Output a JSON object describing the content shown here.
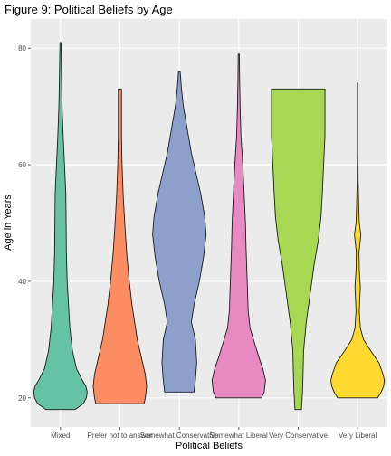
{
  "chart_data": {
    "type": "violin",
    "title": "Figure 9: Political Beliefs by Age",
    "xlabel": "Political Beliefs",
    "ylabel": "Age in Years",
    "ylim": [
      15,
      85
    ],
    "yticks": [
      20,
      40,
      60,
      80
    ],
    "grid": true,
    "legend": "none",
    "categories": [
      "Mixed",
      "Prefer not to answer",
      "Somewhat Conservative",
      "Somewhat Liberal",
      "Very Conservative",
      "Very Liberal"
    ],
    "colors": [
      "#66C2A5",
      "#FC8D62",
      "#8DA0CB",
      "#E78AC3",
      "#A6D854",
      "#FFD92F"
    ],
    "violins": [
      {
        "category": "Mixed",
        "min": 18,
        "max": 81,
        "profile": [
          [
            18,
            0.55
          ],
          [
            19,
            0.85
          ],
          [
            20,
            0.97
          ],
          [
            21,
            1.0
          ],
          [
            22,
            0.95
          ],
          [
            23,
            0.82
          ],
          [
            25,
            0.6
          ],
          [
            28,
            0.45
          ],
          [
            32,
            0.35
          ],
          [
            36,
            0.3
          ],
          [
            40,
            0.25
          ],
          [
            45,
            0.22
          ],
          [
            50,
            0.21
          ],
          [
            55,
            0.2
          ],
          [
            60,
            0.15
          ],
          [
            65,
            0.1
          ],
          [
            70,
            0.06
          ],
          [
            75,
            0.04
          ],
          [
            81,
            0.02
          ]
        ]
      },
      {
        "category": "Prefer not to answer",
        "min": 19,
        "max": 73,
        "profile": [
          [
            19,
            0.9
          ],
          [
            20,
            0.95
          ],
          [
            22,
            1.0
          ],
          [
            24,
            0.95
          ],
          [
            26,
            0.85
          ],
          [
            28,
            0.75
          ],
          [
            30,
            0.65
          ],
          [
            33,
            0.55
          ],
          [
            36,
            0.45
          ],
          [
            40,
            0.35
          ],
          [
            45,
            0.25
          ],
          [
            50,
            0.18
          ],
          [
            55,
            0.12
          ],
          [
            60,
            0.08
          ],
          [
            65,
            0.06
          ],
          [
            70,
            0.06
          ],
          [
            73,
            0.06
          ]
        ]
      },
      {
        "category": "Somewhat Conservative",
        "min": 21,
        "max": 76,
        "profile": [
          [
            21,
            0.55
          ],
          [
            23,
            0.6
          ],
          [
            26,
            0.65
          ],
          [
            30,
            0.6
          ],
          [
            33,
            0.45
          ],
          [
            36,
            0.55
          ],
          [
            40,
            0.75
          ],
          [
            44,
            0.9
          ],
          [
            48,
            1.0
          ],
          [
            51,
            0.95
          ],
          [
            55,
            0.8
          ],
          [
            58,
            0.65
          ],
          [
            62,
            0.45
          ],
          [
            66,
            0.3
          ],
          [
            70,
            0.15
          ],
          [
            73,
            0.08
          ],
          [
            76,
            0.03
          ]
        ]
      },
      {
        "category": "Somewhat Liberal",
        "min": 20,
        "max": 79,
        "profile": [
          [
            20,
            0.85
          ],
          [
            21,
            0.95
          ],
          [
            23,
            1.0
          ],
          [
            25,
            0.9
          ],
          [
            27,
            0.75
          ],
          [
            30,
            0.55
          ],
          [
            32,
            0.42
          ],
          [
            35,
            0.35
          ],
          [
            38,
            0.33
          ],
          [
            42,
            0.3
          ],
          [
            46,
            0.27
          ],
          [
            50,
            0.25
          ],
          [
            55,
            0.2
          ],
          [
            60,
            0.15
          ],
          [
            65,
            0.08
          ],
          [
            70,
            0.05
          ],
          [
            75,
            0.03
          ],
          [
            79,
            0.02
          ]
        ]
      },
      {
        "category": "Very Conservative",
        "min": 18,
        "max": 73,
        "profile": [
          [
            18,
            0.12
          ],
          [
            21,
            0.16
          ],
          [
            24,
            0.18
          ],
          [
            28,
            0.2
          ],
          [
            33,
            0.3
          ],
          [
            38,
            0.45
          ],
          [
            43,
            0.6
          ],
          [
            47,
            0.75
          ],
          [
            51,
            0.85
          ],
          [
            55,
            0.9
          ],
          [
            60,
            0.95
          ],
          [
            65,
            1.0
          ],
          [
            69,
            1.0
          ],
          [
            73,
            1.0
          ]
        ]
      },
      {
        "category": "Very Liberal",
        "min": 20,
        "max": 74,
        "profile": [
          [
            20,
            0.75
          ],
          [
            21,
            0.88
          ],
          [
            22,
            0.97
          ],
          [
            23,
            1.0
          ],
          [
            24,
            0.95
          ],
          [
            26,
            0.8
          ],
          [
            28,
            0.5
          ],
          [
            30,
            0.22
          ],
          [
            32,
            0.1
          ],
          [
            35,
            0.06
          ],
          [
            39,
            0.1
          ],
          [
            42,
            0.06
          ],
          [
            45,
            0.05
          ],
          [
            48,
            0.12
          ],
          [
            50,
            0.06
          ],
          [
            53,
            0.04
          ],
          [
            57,
            0.02
          ],
          [
            62,
            0.01
          ],
          [
            68,
            0.01
          ],
          [
            74,
            0.01
          ]
        ]
      }
    ]
  }
}
